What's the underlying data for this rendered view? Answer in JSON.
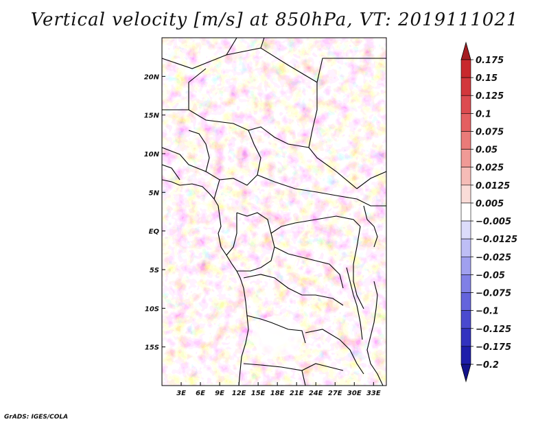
{
  "title": "Vertical velocity [m/s] at 850hPa, VT: 2019111021",
  "credit": "GrADS: IGES/COLA",
  "map": {
    "field": "Vertical velocity",
    "units": "m/s",
    "level": "850hPa",
    "valid_time": "2019111021",
    "lon_range": [
      0,
      35
    ],
    "lat_range": [
      -20,
      25
    ],
    "lon_ticks": [
      "3E",
      "6E",
      "9E",
      "12E",
      "15E",
      "18E",
      "21E",
      "24E",
      "27E",
      "30E",
      "33E"
    ],
    "lon_tick_values": [
      3,
      6,
      9,
      12,
      15,
      18,
      21,
      24,
      27,
      30,
      33
    ],
    "lat_ticks": [
      "20N",
      "15N",
      "10N",
      "5N",
      "EQ",
      "5S",
      "10S",
      "15S"
    ],
    "lat_tick_values": [
      20,
      15,
      10,
      5,
      0,
      -5,
      -10,
      -15
    ]
  },
  "colorbar": {
    "labels": [
      "0.175",
      "0.15",
      "0.125",
      "0.1",
      "0.075",
      "0.05",
      "0.025",
      "0.0125",
      "0.005",
      "−0.005",
      "−0.0125",
      "−0.025",
      "−0.05",
      "−0.075",
      "−0.1",
      "−0.125",
      "−0.175",
      "−0.2"
    ],
    "colors": [
      "#a51e23",
      "#c8282d",
      "#d2373c",
      "#dc4b50",
      "#e45f61",
      "#ea7b79",
      "#f09a96",
      "#f5bcb7",
      "#fadcd8",
      "#ffffff",
      "#dcdcfa",
      "#bebef5",
      "#a0a0ef",
      "#8080e6",
      "#6464dc",
      "#4a4acf",
      "#3232bf",
      "#1e1eaa",
      "#14148c"
    ]
  }
}
